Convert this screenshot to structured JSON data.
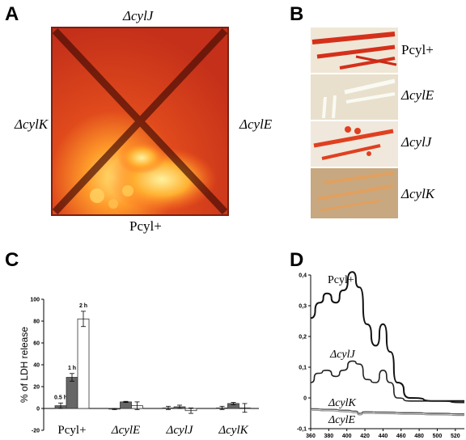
{
  "panels": {
    "a": {
      "letter": "A",
      "top_label": "ΔcylJ",
      "left_label": "ΔcylK",
      "right_label": "ΔcylE",
      "bottom_label": "Pcyl+"
    },
    "b": {
      "letter": "B",
      "strips": [
        {
          "label": "Pcyl+",
          "italic": false
        },
        {
          "label": "ΔcylE",
          "italic": true
        },
        {
          "label": "ΔcylJ",
          "italic": true
        },
        {
          "label": "ΔcylK",
          "italic": true
        }
      ]
    },
    "c": {
      "letter": "C"
    },
    "d": {
      "letter": "D"
    }
  },
  "colors": {
    "plate_red": "#c8341c",
    "plate_orange": "#e85a20",
    "plate_yellow": "#ffd04a",
    "plate_dark": "#5a1208",
    "bar_gray": "#666666",
    "bar_dark": "#444444"
  },
  "chart_data": [
    {
      "type": "bar",
      "ylabel": "% of LDH release",
      "ylim": [
        -20,
        100
      ],
      "yticks": [
        -20,
        0,
        20,
        40,
        60,
        80,
        100
      ],
      "categories": [
        "Pcyl+",
        "ΔcylE",
        "ΔcylJ",
        "ΔcylK"
      ],
      "series": [
        {
          "name": "0.5 h",
          "color": "#666666",
          "values": [
            2.5,
            -0.5,
            0.5,
            0.5
          ],
          "errors": [
            2.5,
            0.5,
            1.5,
            1.5
          ]
        },
        {
          "name": "1 h",
          "color": "#666666",
          "values": [
            28.5,
            6,
            1.5,
            4.5
          ],
          "errors": [
            3.5,
            0.5,
            1.5,
            1
          ]
        },
        {
          "name": "2 h",
          "color": "#ffffff",
          "values": [
            82,
            2.5,
            -2,
            0.5
          ],
          "errors": [
            7,
            3.5,
            2.5,
            4
          ]
        }
      ],
      "annotations": [
        "0.5 h",
        "1 h",
        "2 h"
      ],
      "grid": false
    },
    {
      "type": "line",
      "xlim": [
        360,
        530
      ],
      "xticks": [
        360,
        380,
        400,
        420,
        440,
        460,
        480,
        500,
        520
      ],
      "ylim": [
        -0.1,
        0.4
      ],
      "yticks_labels": [
        "0,4",
        "0,3",
        "0,2",
        "0,1",
        "0",
        "-0,1"
      ],
      "yticks": [
        0.4,
        0.3,
        0.2,
        0.1,
        0,
        -0.1
      ],
      "grid": false,
      "series": [
        {
          "name": "Pcyl+",
          "x": [
            360,
            370,
            378,
            388,
            396,
            406,
            414,
            422,
            432,
            440,
            448,
            456,
            470,
            500,
            530
          ],
          "y": [
            0.26,
            0.31,
            0.34,
            0.31,
            0.35,
            0.41,
            0.36,
            0.24,
            0.17,
            0.24,
            0.15,
            0.05,
            0.0,
            -0.01,
            -0.01
          ]
        },
        {
          "name": "ΔcylJ",
          "x": [
            360,
            368,
            378,
            388,
            396,
            406,
            414,
            422,
            432,
            440,
            448,
            456,
            470,
            500,
            530
          ],
          "y": [
            0.05,
            0.08,
            0.09,
            0.07,
            0.09,
            0.12,
            0.11,
            0.06,
            0.05,
            0.09,
            0.05,
            0.0,
            -0.01,
            -0.01,
            -0.015
          ]
        },
        {
          "name": "ΔcylK",
          "x": [
            360,
            380,
            400,
            410,
            414,
            420,
            440,
            470,
            500,
            530
          ],
          "y": [
            -0.035,
            -0.037,
            -0.04,
            -0.043,
            -0.05,
            -0.045,
            -0.046,
            -0.048,
            -0.05,
            -0.052
          ]
        },
        {
          "name": "ΔcylE",
          "x": [
            360,
            380,
            400,
            410,
            414,
            420,
            440,
            470,
            500,
            530
          ],
          "y": [
            -0.04,
            -0.042,
            -0.045,
            -0.048,
            -0.055,
            -0.05,
            -0.051,
            -0.053,
            -0.055,
            -0.057
          ]
        }
      ]
    }
  ]
}
